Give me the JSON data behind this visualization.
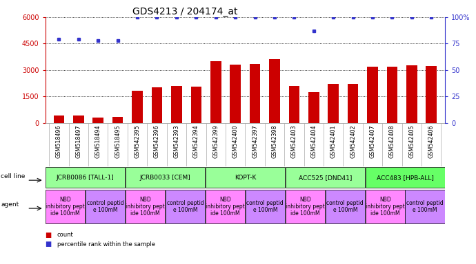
{
  "title": "GDS4213 / 204174_at",
  "gsm_labels": [
    "GSM518496",
    "GSM518497",
    "GSM518494",
    "GSM518495",
    "GSM542395",
    "GSM542396",
    "GSM542393",
    "GSM542394",
    "GSM542399",
    "GSM542400",
    "GSM542397",
    "GSM542398",
    "GSM542403",
    "GSM542404",
    "GSM542401",
    "GSM542402",
    "GSM542407",
    "GSM542408",
    "GSM542405",
    "GSM542406"
  ],
  "bar_values": [
    430,
    430,
    280,
    330,
    1800,
    2000,
    2100,
    2050,
    3500,
    3300,
    3350,
    3600,
    2100,
    1750,
    2200,
    2200,
    3200,
    3200,
    3280,
    3220
  ],
  "percentile_values": [
    79,
    79,
    78,
    78,
    100,
    100,
    100,
    100,
    100,
    100,
    100,
    100,
    100,
    87,
    100,
    100,
    100,
    100,
    100,
    100
  ],
  "bar_color": "#cc0000",
  "dot_color": "#3333cc",
  "ylim_left": [
    0,
    6000
  ],
  "ylim_right": [
    0,
    100
  ],
  "yticks_left": [
    0,
    1500,
    3000,
    4500,
    6000
  ],
  "ytick_labels_left": [
    "0",
    "1500",
    "3000",
    "4500",
    "6000"
  ],
  "yticks_right": [
    0,
    25,
    50,
    75,
    100
  ],
  "ytick_labels_right": [
    "0",
    "25",
    "50",
    "75",
    "100%"
  ],
  "cell_lines": [
    {
      "label": "JCRB0086 [TALL-1]",
      "start": 0,
      "end": 4,
      "color": "#99ff99"
    },
    {
      "label": "JCRB0033 [CEM]",
      "start": 4,
      "end": 8,
      "color": "#99ff99"
    },
    {
      "label": "KOPT-K",
      "start": 8,
      "end": 12,
      "color": "#99ff99"
    },
    {
      "label": "ACC525 [DND41]",
      "start": 12,
      "end": 16,
      "color": "#99ff99"
    },
    {
      "label": "ACC483 [HPB-ALL]",
      "start": 16,
      "end": 20,
      "color": "#66ff66"
    }
  ],
  "agents": [
    {
      "label": "NBD\ninhibitory pept\nide 100mM",
      "start": 0,
      "end": 2,
      "color": "#ff88ff"
    },
    {
      "label": "control peptid\ne 100mM",
      "start": 2,
      "end": 4,
      "color": "#cc88ff"
    },
    {
      "label": "NBD\ninhibitory pept\nide 100mM",
      "start": 4,
      "end": 6,
      "color": "#ff88ff"
    },
    {
      "label": "control peptid\ne 100mM",
      "start": 6,
      "end": 8,
      "color": "#cc88ff"
    },
    {
      "label": "NBD\ninhibitory pept\nide 100mM",
      "start": 8,
      "end": 10,
      "color": "#ff88ff"
    },
    {
      "label": "control peptid\ne 100mM",
      "start": 10,
      "end": 12,
      "color": "#cc88ff"
    },
    {
      "label": "NBD\ninhibitory pept\nide 100mM",
      "start": 12,
      "end": 14,
      "color": "#ff88ff"
    },
    {
      "label": "control peptid\ne 100mM",
      "start": 14,
      "end": 16,
      "color": "#cc88ff"
    },
    {
      "label": "NBD\ninhibitory pept\nide 100mM",
      "start": 16,
      "end": 18,
      "color": "#ff88ff"
    },
    {
      "label": "control peptid\ne 100mM",
      "start": 18,
      "end": 20,
      "color": "#cc88ff"
    }
  ],
  "background_color": "#ffffff",
  "grid_color": "#000000"
}
